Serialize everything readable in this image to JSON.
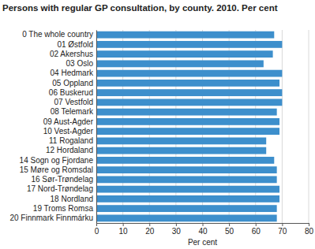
{
  "chart_data": {
    "type": "bar",
    "orientation": "horizontal",
    "title": "Persons with regular GP consultation, by county. 2010. Per cent",
    "xlabel": "Per cent",
    "categories": [
      "0 The whole country",
      "01 Østfold",
      "02 Akershus",
      "03 Oslo",
      "04 Hedmark",
      "05 Oppland",
      "06 Buskerud",
      "07 Vestfold",
      "08 Telemark",
      "09 Aust-Agder",
      "10 Vest-Agder",
      "11 Rogaland",
      "12 Hordaland",
      "14 Sogn og Fjordane",
      "15 Møre og Romsdal",
      "16 Sør-Trøndelag",
      "17 Nord-Trøndelag",
      "18 Nordland",
      "19 Troms Romsa",
      "20 Finnmark Finnmárku"
    ],
    "values": [
      67,
      70,
      66.5,
      63,
      70,
      69,
      70,
      70,
      68,
      69,
      69,
      64,
      64,
      67,
      68,
      68,
      69,
      69,
      68,
      68
    ],
    "color": "#3d8fcc",
    "xlim": [
      0,
      80
    ],
    "xticks": [
      0,
      10,
      20,
      30,
      40,
      50,
      60,
      70,
      80
    ],
    "grid": true
  }
}
